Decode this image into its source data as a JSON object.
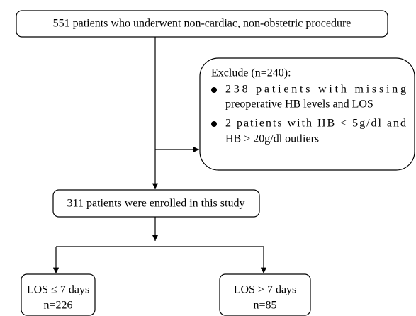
{
  "nodes": [
    {
      "label": "551 patients who underwent non-cardiac, non-obstetric procedure"
    },
    {
      "title": "Exclude (n=240):",
      "bullets": [
        [
          "238 patients with missing",
          "preoperative HB levels and LOS"
        ],
        [
          "2 patients with HB < 5g/dl and",
          "HB > 20g/dl outliers"
        ]
      ]
    },
    {
      "label": "311 patients were enrolled in this study"
    },
    {
      "lines": [
        "LOS ≤ 7 days",
        "n=226"
      ]
    },
    {
      "lines": [
        "LOS > 7 days",
        "n=85"
      ]
    }
  ]
}
